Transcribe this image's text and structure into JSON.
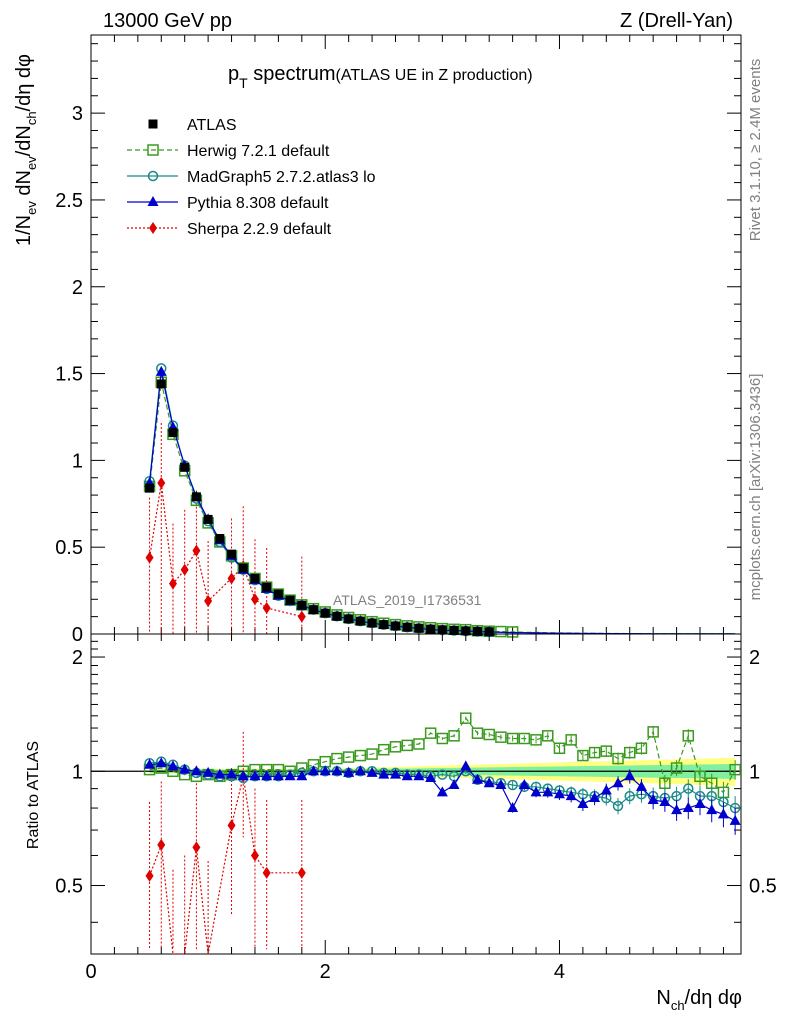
{
  "header": {
    "left": "13000 GeV pp",
    "right": "Z (Drell-Yan)"
  },
  "side": {
    "rivet": "Rivet 3.1.10, ≥ 2.4M events",
    "mcplots": "mcplots.cern.ch [arXiv:1306.3436]"
  },
  "title": {
    "main": "p",
    "sub": "T",
    "rest": " spectrum",
    "note": "(ATLAS UE in Z production)"
  },
  "analysis_label": "ATLAS_2019_I1736531",
  "top_ylabel": {
    "a": "1/N",
    "a_sub": "ev",
    "b": " dN",
    "b_sub": "ev",
    "c": "/dN",
    "c_sub": "ch",
    "d": "/dη dφ"
  },
  "bottom_ylabel": "Ratio to ATLAS",
  "xlabel": {
    "a": "N",
    "a_sub": "ch",
    "b": "/dη dφ"
  },
  "colors": {
    "atlas": "#000000",
    "herwig": "#3a9a1f",
    "madgraph": "#1a8a8a",
    "pythia": "#0000cc",
    "sherpa": "#e00000",
    "band_outer": "#ffff80",
    "band_inner": "#80f0a0"
  },
  "chart_data": [
    {
      "type": "scatter",
      "xlim": [
        0,
        5.55
      ],
      "ylim": [
        0,
        3.45
      ],
      "yticks": [
        "0",
        "0.5",
        "1",
        "1.5",
        "2",
        "2.5",
        "3"
      ],
      "ytick_values": [
        0,
        0.5,
        1,
        1.5,
        2,
        2.5,
        3
      ],
      "xticks": [
        "0",
        "2",
        "4"
      ],
      "xtick_values": [
        0,
        2,
        4
      ],
      "legend_position": "top-left",
      "series": [
        {
          "name": "ATLAS",
          "key": "atlas",
          "x": [
            0.5,
            0.6,
            0.7,
            0.8,
            0.9,
            1.0,
            1.1,
            1.2,
            1.3,
            1.4,
            1.5,
            1.6,
            1.7,
            1.8,
            1.9,
            2.0,
            2.1,
            2.2,
            2.3,
            2.4,
            2.5,
            2.6,
            2.7,
            2.8,
            2.9,
            3.0,
            3.1,
            3.2,
            3.3,
            3.4,
            3.5,
            3.6,
            3.7,
            3.8,
            3.9,
            4.0,
            4.1,
            4.2,
            4.3,
            4.4,
            4.5,
            4.6,
            4.7,
            4.8,
            4.9,
            5.0,
            5.1,
            5.2,
            5.3,
            5.4,
            5.5
          ],
          "y": [
            0.84,
            1.44,
            1.16,
            0.96,
            0.79,
            0.66,
            0.55,
            0.46,
            0.38,
            0.32,
            0.27,
            0.23,
            0.195,
            0.165,
            0.14,
            0.12,
            0.102,
            0.087,
            0.074,
            0.063,
            0.054,
            0.046,
            0.039,
            0.033,
            0.028,
            0.024,
            0.021,
            0.018,
            0.015,
            0.013,
            0.011,
            0.0095,
            0.008,
            0.007,
            0.006,
            0.005,
            0.0043,
            0.0037,
            0.0032,
            0.0027,
            0.0023,
            0.002,
            0.0017,
            0.0015,
            0.0013,
            0.0011,
            0.001,
            0.0008,
            0.0007,
            0.0006,
            0.0005
          ]
        },
        {
          "name": "Herwig 7.2.1 default",
          "key": "herwig",
          "x": [
            0.5,
            0.6,
            0.7,
            0.8,
            0.9,
            1.0,
            1.1,
            1.2,
            1.3,
            1.4,
            1.5,
            1.6,
            1.7,
            1.8,
            1.9,
            2.0,
            2.1,
            2.2,
            2.3,
            2.4,
            2.5,
            2.6,
            2.7,
            2.8,
            2.9,
            3.0,
            3.1,
            3.2,
            3.3,
            3.4,
            3.5,
            3.6,
            3.7,
            3.8,
            3.9,
            4.0,
            4.1,
            4.2,
            4.3,
            4.4,
            4.5,
            4.6,
            4.7,
            4.8,
            4.9,
            5.0,
            5.1,
            5.2,
            5.3,
            5.4,
            5.5
          ],
          "y": [
            0.85,
            1.45,
            1.15,
            0.94,
            0.77,
            0.64,
            0.53,
            0.45,
            0.38,
            0.32,
            0.27,
            0.23,
            0.195,
            0.168,
            0.146,
            0.127,
            0.11,
            0.095,
            0.082,
            0.071,
            0.062,
            0.054,
            0.047,
            0.041,
            0.036,
            0.031,
            0.027,
            0.025,
            0.019,
            0.016,
            0.014,
            0.012,
            0.01,
            0.009,
            0.0075,
            0.0065,
            0.0055,
            0.0047,
            0.004,
            0.0034,
            0.0029,
            0.0025,
            0.0022,
            0.0019,
            0.0016,
            0.0014,
            0.0012,
            0.001,
            0.0009,
            0.0008,
            0.0007
          ]
        },
        {
          "name": "MadGraph5 2.7.2.atlas3 lo",
          "key": "madgraph",
          "x": [
            0.5,
            0.6,
            0.7,
            0.8,
            0.9,
            1.0,
            1.1,
            1.2,
            1.3,
            1.4,
            1.5,
            1.6,
            1.7,
            1.8,
            1.9,
            2.0,
            2.1,
            2.2,
            2.3,
            2.4,
            2.5,
            2.6,
            2.7,
            2.8,
            2.9,
            3.0,
            3.1,
            3.2,
            3.3,
            3.4,
            3.5,
            3.6,
            3.7,
            3.8,
            3.9,
            4.0,
            4.1,
            4.2,
            4.3,
            4.4,
            4.5,
            4.6,
            4.7,
            4.8,
            4.9,
            5.0,
            5.1,
            5.2,
            5.3,
            5.4,
            5.5
          ],
          "y": [
            0.88,
            1.53,
            1.2,
            0.97,
            0.78,
            0.65,
            0.53,
            0.44,
            0.37,
            0.31,
            0.26,
            0.22,
            0.19,
            0.163,
            0.14,
            0.12,
            0.102,
            0.087,
            0.074,
            0.063,
            0.054,
            0.046,
            0.039,
            0.033,
            0.027,
            0.023,
            0.02,
            0.017,
            0.014,
            0.012,
            0.01,
            0.0086,
            0.0072,
            0.0062,
            0.0053,
            0.0044,
            0.0037,
            0.0031,
            0.0027,
            0.0022,
            0.0019,
            0.0016,
            0.0014,
            0.0012,
            0.0011,
            0.0009,
            0.0008,
            0.0007,
            0.0006,
            0.0005,
            0.0004
          ]
        },
        {
          "name": "Pythia 8.308 default",
          "key": "pythia",
          "x": [
            0.5,
            0.6,
            0.7,
            0.8,
            0.9,
            1.0,
            1.1,
            1.2,
            1.3,
            1.4,
            1.5,
            1.6,
            1.7,
            1.8,
            1.9,
            2.0,
            2.1,
            2.2,
            2.3,
            2.4,
            2.5,
            2.6,
            2.7,
            2.8,
            2.9,
            3.0,
            3.1,
            3.2,
            3.3,
            3.4,
            3.5,
            3.6,
            3.7,
            3.8,
            3.9,
            4.0,
            4.1,
            4.2,
            4.3,
            4.4,
            4.5,
            4.6,
            4.7,
            4.8,
            4.9,
            5.0,
            5.1,
            5.2,
            5.3,
            5.4,
            5.5
          ],
          "y": [
            0.87,
            1.51,
            1.19,
            0.97,
            0.79,
            0.66,
            0.54,
            0.45,
            0.37,
            0.31,
            0.26,
            0.22,
            0.19,
            0.165,
            0.14,
            0.12,
            0.102,
            0.087,
            0.074,
            0.062,
            0.053,
            0.045,
            0.038,
            0.032,
            0.026,
            0.021,
            0.019,
            0.018,
            0.014,
            0.012,
            0.01,
            0.0078,
            0.0072,
            0.0062,
            0.0053,
            0.0044,
            0.0038,
            0.0031,
            0.0029,
            0.0025,
            0.0021,
            0.0018,
            0.0015,
            0.0013,
            0.0011,
            0.0009,
            0.0008,
            0.0007,
            0.0006,
            0.0005,
            0.0004
          ]
        },
        {
          "name": "Sherpa 2.2.9 default",
          "key": "sherpa",
          "x": [
            0.5,
            0.6,
            0.7,
            0.8,
            0.9,
            1.0,
            1.2,
            1.3,
            1.4,
            1.5,
            1.8
          ],
          "y": [
            0.44,
            0.87,
            0.29,
            0.37,
            0.48,
            0.19,
            0.32,
            0.39,
            0.2,
            0.15,
            0.1
          ]
        }
      ]
    },
    {
      "type": "scatter",
      "xlim": [
        0,
        5.55
      ],
      "ylim": [
        0.33,
        2.3
      ],
      "yticks": [
        "0.5",
        "1",
        "2"
      ],
      "ytick_values": [
        0.5,
        1,
        2
      ],
      "xticks": [
        "0",
        "2",
        "4"
      ],
      "xtick_values": [
        0,
        2,
        4
      ],
      "reference_line": 1,
      "series": [
        {
          "name": "Herwig 7.2.1 default",
          "key": "herwig",
          "x": [
            0.5,
            0.6,
            0.7,
            0.8,
            0.9,
            1.0,
            1.1,
            1.2,
            1.3,
            1.4,
            1.5,
            1.6,
            1.7,
            1.8,
            1.9,
            2.0,
            2.1,
            2.2,
            2.3,
            2.4,
            2.5,
            2.6,
            2.7,
            2.8,
            2.9,
            3.0,
            3.1,
            3.2,
            3.3,
            3.4,
            3.5,
            3.6,
            3.7,
            3.8,
            3.9,
            4.0,
            4.1,
            4.2,
            4.3,
            4.4,
            4.5,
            4.6,
            4.7,
            4.8,
            4.9,
            5.0,
            5.1,
            5.2,
            5.3,
            5.4,
            5.5
          ],
          "y": [
            1.01,
            1.02,
            1.0,
            0.98,
            0.97,
            0.98,
            0.97,
            0.98,
            1.0,
            1.01,
            1.01,
            1.01,
            1.0,
            1.02,
            1.04,
            1.06,
            1.08,
            1.09,
            1.1,
            1.11,
            1.14,
            1.16,
            1.17,
            1.18,
            1.26,
            1.22,
            1.24,
            1.38,
            1.26,
            1.25,
            1.23,
            1.22,
            1.22,
            1.21,
            1.24,
            1.15,
            1.21,
            1.1,
            1.12,
            1.13,
            1.08,
            1.12,
            1.15,
            1.27,
            0.93,
            1.02,
            1.24,
            0.97,
            0.93,
            0.88,
            1.01
          ]
        },
        {
          "name": "MadGraph5 2.7.2.atlas3 lo",
          "key": "madgraph",
          "x": [
            0.5,
            0.6,
            0.7,
            0.8,
            0.9,
            1.0,
            1.1,
            1.2,
            1.3,
            1.4,
            1.5,
            1.6,
            1.7,
            1.8,
            1.9,
            2.0,
            2.1,
            2.2,
            2.3,
            2.4,
            2.5,
            2.6,
            2.7,
            2.8,
            2.9,
            3.0,
            3.1,
            3.2,
            3.3,
            3.4,
            3.5,
            3.6,
            3.7,
            3.8,
            3.9,
            4.0,
            4.1,
            4.2,
            4.3,
            4.4,
            4.5,
            4.6,
            4.7,
            4.8,
            4.9,
            5.0,
            5.1,
            5.2,
            5.3,
            5.4,
            5.5
          ],
          "y": [
            1.05,
            1.06,
            1.04,
            1.01,
            0.99,
            0.98,
            0.97,
            0.97,
            0.96,
            0.97,
            0.97,
            0.97,
            0.98,
            0.99,
            1.0,
            1.0,
            1.0,
            0.99,
            1.0,
            1.0,
            0.99,
            0.99,
            0.98,
            0.98,
            0.97,
            0.98,
            0.97,
            1.0,
            0.95,
            0.94,
            0.93,
            0.92,
            0.91,
            0.91,
            0.9,
            0.89,
            0.88,
            0.87,
            0.86,
            0.85,
            0.81,
            0.86,
            0.87,
            0.86,
            0.85,
            0.86,
            0.9,
            0.86,
            0.86,
            0.83,
            0.8
          ]
        },
        {
          "name": "Pythia 8.308 default",
          "key": "pythia",
          "x": [
            0.5,
            0.6,
            0.7,
            0.8,
            0.9,
            1.0,
            1.1,
            1.2,
            1.3,
            1.4,
            1.5,
            1.6,
            1.7,
            1.8,
            1.9,
            2.0,
            2.1,
            2.2,
            2.3,
            2.4,
            2.5,
            2.6,
            2.7,
            2.8,
            2.9,
            3.0,
            3.1,
            3.2,
            3.3,
            3.4,
            3.5,
            3.6,
            3.7,
            3.8,
            3.9,
            4.0,
            4.1,
            4.2,
            4.3,
            4.4,
            4.5,
            4.6,
            4.7,
            4.8,
            4.9,
            5.0,
            5.1,
            5.2,
            5.3,
            5.4,
            5.5
          ],
          "y": [
            1.04,
            1.05,
            1.03,
            1.01,
            1.0,
            0.99,
            0.98,
            0.98,
            0.97,
            0.97,
            0.97,
            0.97,
            0.97,
            0.97,
            1.0,
            1.0,
            1.0,
            0.99,
            1.0,
            0.99,
            0.98,
            0.98,
            0.97,
            0.97,
            0.96,
            0.88,
            0.92,
            1.03,
            0.95,
            0.93,
            0.92,
            0.8,
            0.92,
            0.88,
            0.88,
            0.87,
            0.86,
            0.82,
            0.85,
            0.89,
            0.93,
            0.97,
            0.91,
            0.84,
            0.83,
            0.79,
            0.8,
            0.82,
            0.79,
            0.77,
            0.74
          ]
        },
        {
          "name": "Sherpa 2.2.9 default",
          "key": "sherpa",
          "x": [
            0.5,
            0.6,
            0.7,
            0.8,
            0.9,
            1.0,
            1.2,
            1.3,
            1.4,
            1.5,
            1.8
          ],
          "y": [
            0.53,
            0.64,
            0.25,
            0.3,
            0.63,
            0.28,
            0.72,
            0.97,
            0.6,
            0.54,
            0.54
          ]
        }
      ]
    }
  ]
}
